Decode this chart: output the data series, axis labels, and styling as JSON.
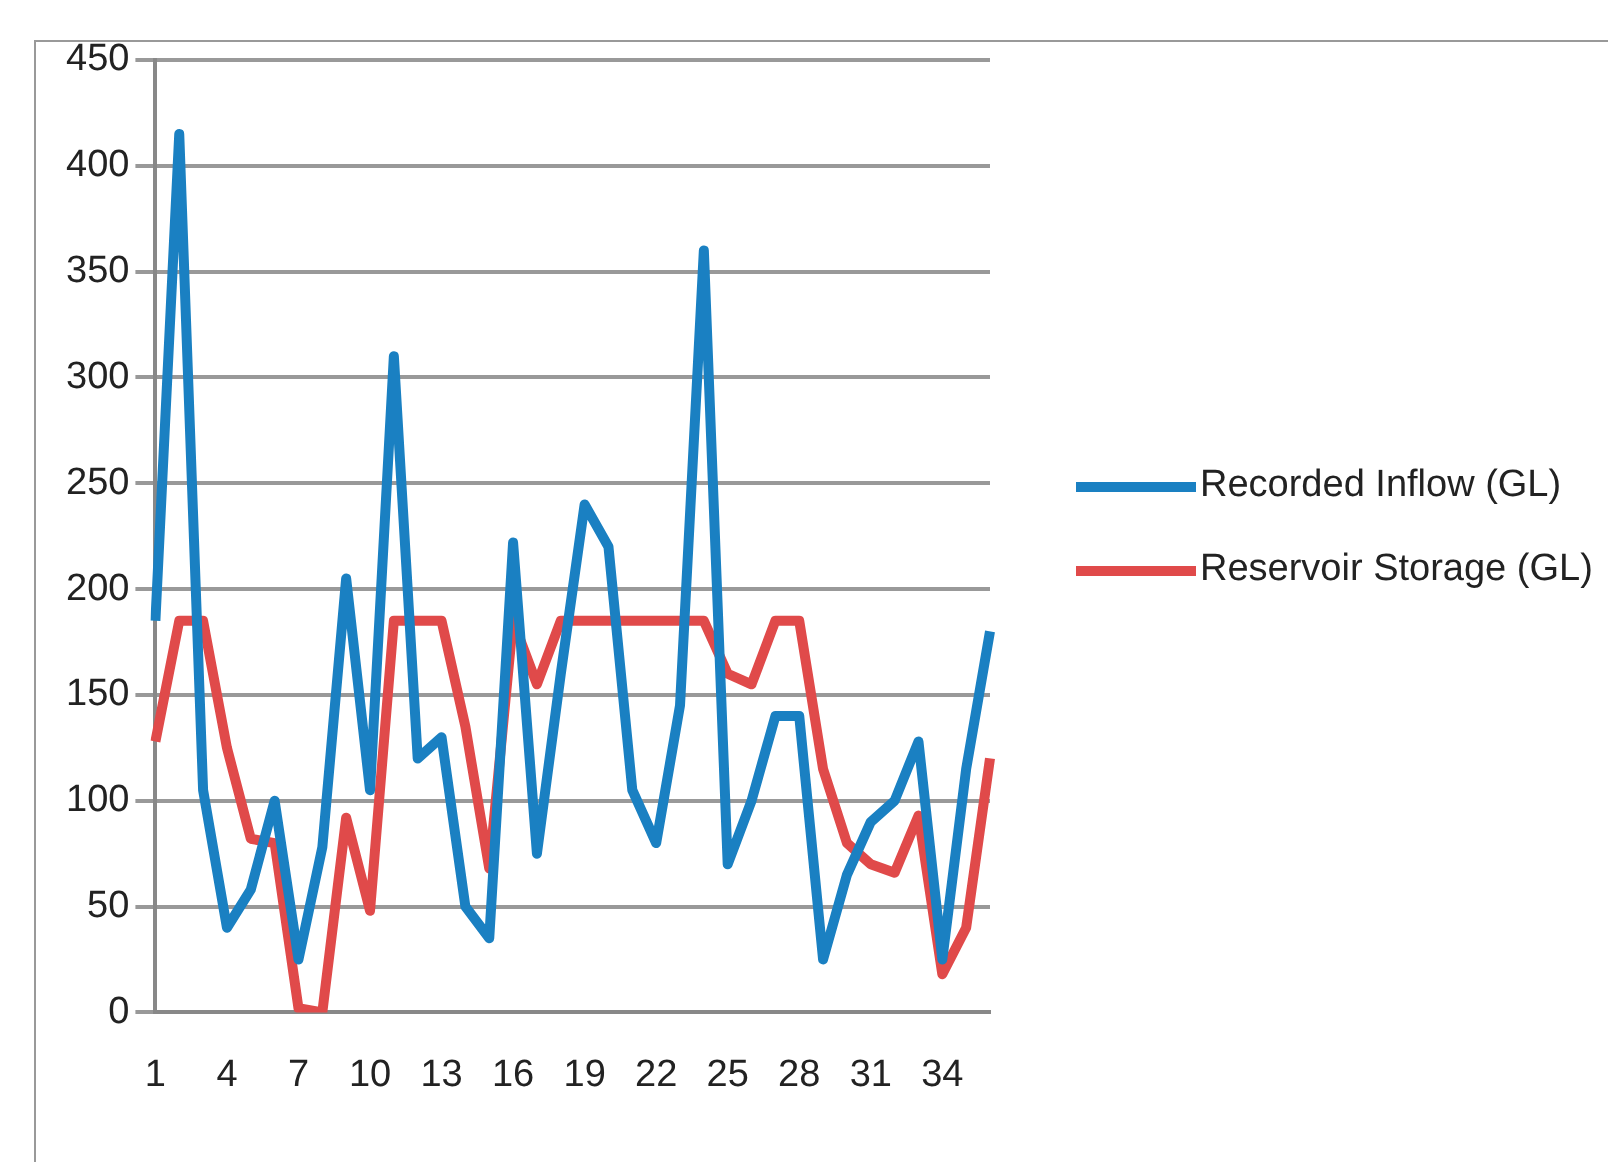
{
  "chart_data": {
    "type": "line",
    "categories": [
      "1",
      null,
      null,
      "4",
      null,
      null,
      "7",
      null,
      null,
      "10",
      null,
      null,
      "13",
      null,
      null,
      "16",
      null,
      null,
      "19",
      null,
      null,
      "22",
      null,
      null,
      "25",
      null,
      null,
      "28",
      null,
      null,
      "31",
      null,
      null,
      "34",
      null,
      null
    ],
    "series": [
      {
        "name": "Recorded Inflow (GL)",
        "color": "#1a80c2",
        "values": [
          185,
          415,
          105,
          40,
          58,
          100,
          25,
          78,
          205,
          105,
          310,
          120,
          130,
          50,
          35,
          222,
          75,
          160,
          240,
          220,
          105,
          80,
          145,
          360,
          70,
          100,
          140,
          140,
          25,
          65,
          90,
          100,
          128,
          25,
          115,
          180
        ]
      },
      {
        "name": "Reservoir Storage (GL)",
        "color": "#e04a4a",
        "values": [
          128,
          185,
          185,
          125,
          82,
          80,
          2,
          0,
          92,
          48,
          185,
          185,
          185,
          135,
          68,
          185,
          155,
          185,
          185,
          185,
          185,
          185,
          185,
          185,
          160,
          155,
          185,
          185,
          115,
          80,
          70,
          66,
          93,
          18,
          40,
          120
        ]
      }
    ],
    "ylim": [
      0,
      450
    ],
    "yticks": [
      0,
      50,
      100,
      150,
      200,
      250,
      300,
      350,
      400,
      450
    ],
    "grid": "y",
    "legend": "right",
    "marker": "none",
    "line_style": "solid"
  }
}
